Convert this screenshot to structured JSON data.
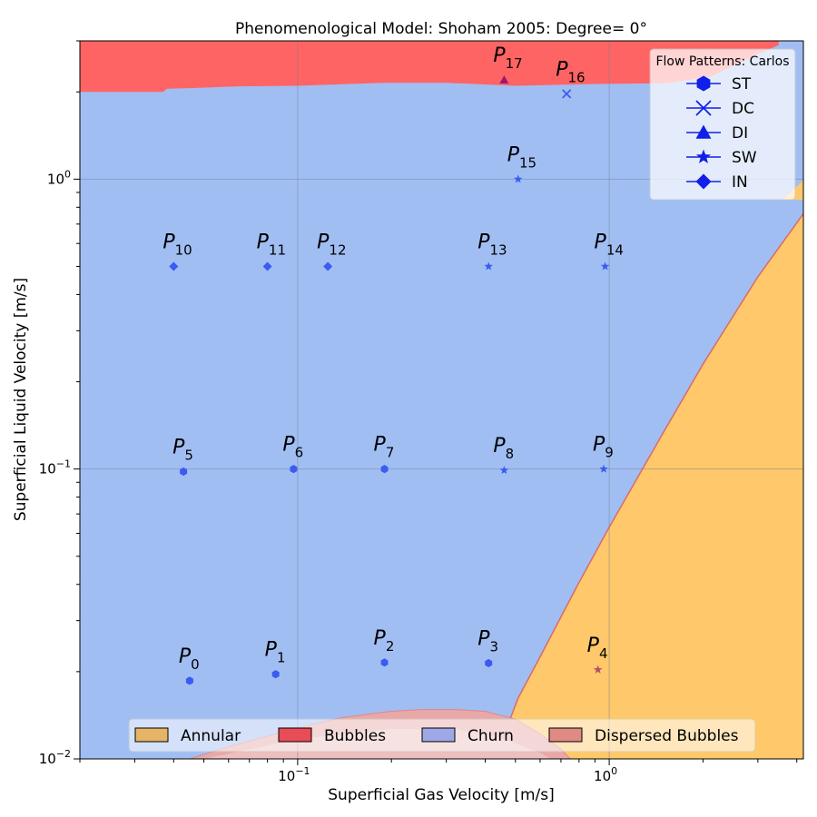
{
  "chart_data": {
    "type": "scatter",
    "title": "Phenomenological Model: Shoham 2005: Degree= 0°",
    "xlabel": "Superficial Gas Velocity [m/s]",
    "ylabel": "Superficial Liquid Velocity [m/s]",
    "x_scale": "log",
    "y_scale": "log",
    "xlim": [
      0.02,
      4.2
    ],
    "ylim": [
      0.01,
      3.0
    ],
    "grid": true,
    "x_ticks": [
      {
        "value": 0.1,
        "base": "10",
        "exp": "−1"
      },
      {
        "value": 1.0,
        "base": "10",
        "exp": "0"
      }
    ],
    "y_ticks": [
      {
        "value": 0.01,
        "base": "10",
        "exp": "−2"
      },
      {
        "value": 0.1,
        "base": "10",
        "exp": "−1"
      },
      {
        "value": 1.0,
        "base": "10",
        "exp": "0"
      }
    ],
    "colors": {
      "Annular": "#ffc86a",
      "Bubbles": "#ff6464",
      "Churn": "#a1bef3",
      "Dispersed Bubbles": "#e8a8a8",
      "marker": "#3a5cf0",
      "marker_red": "#b0506a",
      "marker_purple": "#a0186a"
    },
    "regions": {
      "bubbles_boundary": [
        [
          0.02,
          2.0
        ],
        [
          0.037,
          2.0
        ],
        [
          0.038,
          2.05
        ],
        [
          0.045,
          2.06
        ],
        [
          0.065,
          2.09
        ],
        [
          0.1,
          2.1
        ],
        [
          0.19,
          2.15
        ],
        [
          0.3,
          2.15
        ],
        [
          0.5,
          2.1
        ],
        [
          0.9,
          2.13
        ],
        [
          1.5,
          2.14
        ],
        [
          2.1,
          2.25
        ],
        [
          3.0,
          2.7
        ],
        [
          3.5,
          2.9
        ]
      ],
      "annular_boundary": [
        [
          0.43,
          0.01
        ],
        [
          0.51,
          0.0162
        ],
        [
          0.6,
          0.0225
        ],
        [
          0.8,
          0.0406
        ],
        [
          1.0,
          0.063
        ],
        [
          1.5,
          0.135
        ],
        [
          2.0,
          0.23
        ],
        [
          3.0,
          0.46
        ],
        [
          4.2,
          0.76
        ]
      ],
      "annular_top_corner": [
        [
          3.6,
          0.85
        ],
        [
          4.2,
          0.99
        ],
        [
          4.2,
          0.85
        ]
      ],
      "dispersed_boundary": [
        [
          0.045,
          0.01
        ],
        [
          0.06,
          0.011
        ],
        [
          0.1,
          0.0128
        ],
        [
          0.14,
          0.0139
        ],
        [
          0.2,
          0.0146
        ],
        [
          0.25,
          0.0148
        ],
        [
          0.32,
          0.0148
        ],
        [
          0.4,
          0.0146
        ],
        [
          0.5,
          0.0137
        ],
        [
          0.6,
          0.0122
        ],
        [
          0.7,
          0.0108
        ],
        [
          0.75,
          0.01
        ]
      ],
      "shadow_boundary": [
        [
          0.05,
          0.01
        ],
        [
          0.1,
          0.0117
        ],
        [
          0.2,
          0.0127
        ],
        [
          0.32,
          0.0127
        ],
        [
          0.45,
          0.0118
        ],
        [
          0.6,
          0.0105
        ],
        [
          0.65,
          0.01
        ]
      ]
    },
    "points": [
      {
        "label": "P",
        "index": "0",
        "x": 0.045,
        "y": 0.0186,
        "type": "ST"
      },
      {
        "label": "P",
        "index": "1",
        "x": 0.085,
        "y": 0.0196,
        "type": "ST"
      },
      {
        "label": "P",
        "index": "2",
        "x": 0.19,
        "y": 0.0215,
        "type": "ST"
      },
      {
        "label": "P",
        "index": "3",
        "x": 0.41,
        "y": 0.0214,
        "type": "ST"
      },
      {
        "label": "P",
        "index": "4",
        "x": 0.92,
        "y": 0.0203,
        "type": "SW",
        "color": "marker_red"
      },
      {
        "label": "P",
        "index": "5",
        "x": 0.043,
        "y": 0.098,
        "type": "ST"
      },
      {
        "label": "P",
        "index": "6",
        "x": 0.097,
        "y": 0.1,
        "type": "ST"
      },
      {
        "label": "P",
        "index": "7",
        "x": 0.19,
        "y": 0.1,
        "type": "ST"
      },
      {
        "label": "P",
        "index": "8",
        "x": 0.46,
        "y": 0.099,
        "type": "SW"
      },
      {
        "label": "P",
        "index": "9",
        "x": 0.96,
        "y": 0.1,
        "type": "SW"
      },
      {
        "label": "P",
        "index": "10",
        "x": 0.04,
        "y": 0.5,
        "type": "IN"
      },
      {
        "label": "P",
        "index": "11",
        "x": 0.08,
        "y": 0.5,
        "type": "IN"
      },
      {
        "label": "P",
        "index": "12",
        "x": 0.125,
        "y": 0.5,
        "type": "IN"
      },
      {
        "label": "P",
        "index": "13",
        "x": 0.41,
        "y": 0.5,
        "type": "SW"
      },
      {
        "label": "P",
        "index": "14",
        "x": 0.97,
        "y": 0.5,
        "type": "SW"
      },
      {
        "label": "P",
        "index": "15",
        "x": 0.51,
        "y": 1.0,
        "type": "SW"
      },
      {
        "label": "P",
        "index": "16",
        "x": 0.73,
        "y": 1.97,
        "type": "DC"
      },
      {
        "label": "P",
        "index": "17",
        "x": 0.46,
        "y": 2.2,
        "type": "DI",
        "color": "marker_purple"
      }
    ],
    "legend_patterns": {
      "title": "Flow Patterns: Carlos",
      "placement": "top-right",
      "entries": [
        {
          "name": "ST",
          "marker": "hexagon"
        },
        {
          "name": "DC",
          "marker": "x"
        },
        {
          "name": "DI",
          "marker": "triangle"
        },
        {
          "name": "SW",
          "marker": "star"
        },
        {
          "name": "IN",
          "marker": "diamond"
        }
      ]
    },
    "legend_regions": {
      "placement": "bottom-center",
      "entries": [
        "Annular",
        "Bubbles",
        "Churn",
        "Dispersed Bubbles"
      ]
    }
  }
}
